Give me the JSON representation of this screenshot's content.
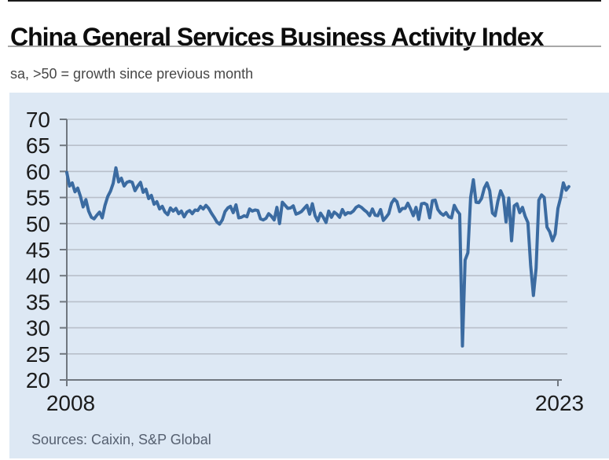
{
  "header": {
    "title": "China General Services Business Activity Index",
    "subtitle": "sa, >50 = growth since previous month"
  },
  "footer": {
    "source": "Sources: Caixin, S&P Global"
  },
  "colors": {
    "line": "#3b6ba1",
    "panel_bg": "#dde8f4",
    "grid": "#b8bfca",
    "axis": "#70777f",
    "tick_label": "#1b1b1b",
    "title": "#0d0d0d",
    "subtitle": "#474747",
    "source": "#566070"
  },
  "chart_data": {
    "type": "line",
    "title": "China General Services Business Activity Index",
    "subtitle": "sa, >50 = growth since previous month",
    "source": "Sources: Caixin, S&P Global",
    "frequency": "monthly",
    "x_start": "2008-01",
    "x_end": "2023-05",
    "x_tick_labels": [
      "2008",
      "2023"
    ],
    "x_tick_month_index": [
      0,
      180
    ],
    "y_ticks": [
      20,
      25,
      30,
      35,
      40,
      45,
      50,
      55,
      60,
      65,
      70
    ],
    "ylim": [
      20,
      70
    ],
    "reference_level": 50,
    "grid": true,
    "legend": "none",
    "series": [
      {
        "name": "Business Activity Index",
        "values": [
          59.8,
          57.2,
          57.8,
          56.1,
          56.8,
          55.2,
          53.2,
          54.6,
          52.4,
          51.2,
          50.9,
          51.6,
          52.2,
          51.1,
          53.5,
          55.2,
          56.2,
          57.7,
          60.7,
          58.0,
          58.7,
          57.2,
          57.9,
          58.1,
          57.9,
          56.3,
          57.2,
          57.9,
          56.0,
          56.6,
          54.8,
          55.4,
          53.7,
          54.2,
          52.8,
          53.3,
          52.2,
          51.7,
          53.0,
          52.4,
          52.9,
          51.9,
          52.4,
          51.3,
          52.2,
          52.5,
          51.9,
          52.6,
          52.5,
          53.3,
          52.8,
          53.5,
          52.9,
          52.0,
          51.2,
          50.3,
          49.9,
          50.7,
          52.3,
          53.0,
          53.3,
          52.1,
          53.6,
          51.1,
          51.2,
          51.5,
          51.3,
          52.8,
          52.4,
          52.6,
          52.5,
          50.9,
          50.7,
          51.0,
          51.9,
          51.4,
          50.7,
          53.1,
          50.0,
          54.1,
          53.5,
          52.9,
          53.0,
          53.4,
          51.8,
          52.0,
          52.3,
          52.9,
          53.5,
          51.8,
          53.8,
          51.5,
          50.5,
          52.0,
          51.2,
          50.2,
          52.4,
          51.2,
          52.2,
          51.8,
          51.2,
          52.7,
          51.7,
          52.1,
          52.0,
          52.4,
          53.1,
          53.4,
          53.1,
          52.6,
          52.2,
          51.5,
          52.8,
          51.6,
          51.5,
          52.7,
          50.6,
          51.2,
          51.9,
          53.9,
          54.7,
          54.2,
          52.3,
          52.9,
          52.9,
          53.9,
          52.8,
          51.5,
          53.1,
          50.8,
          53.8,
          53.9,
          53.6,
          51.1,
          54.4,
          54.5,
          52.7,
          52.0,
          51.6,
          52.1,
          51.3,
          51.1,
          53.5,
          52.5,
          51.8,
          26.5,
          43.0,
          44.4,
          55.0,
          58.4,
          54.1,
          54.0,
          54.8,
          56.8,
          57.8,
          56.3,
          52.0,
          51.5,
          54.3,
          56.3,
          55.1,
          50.3,
          54.9,
          46.7,
          53.4,
          53.8,
          52.1,
          53.1,
          51.4,
          50.2,
          42.0,
          36.2,
          41.4,
          54.5,
          55.5,
          55.0,
          49.3,
          48.4,
          46.7,
          48.0,
          52.9,
          55.0,
          57.8,
          56.4,
          57.1
        ]
      }
    ]
  }
}
